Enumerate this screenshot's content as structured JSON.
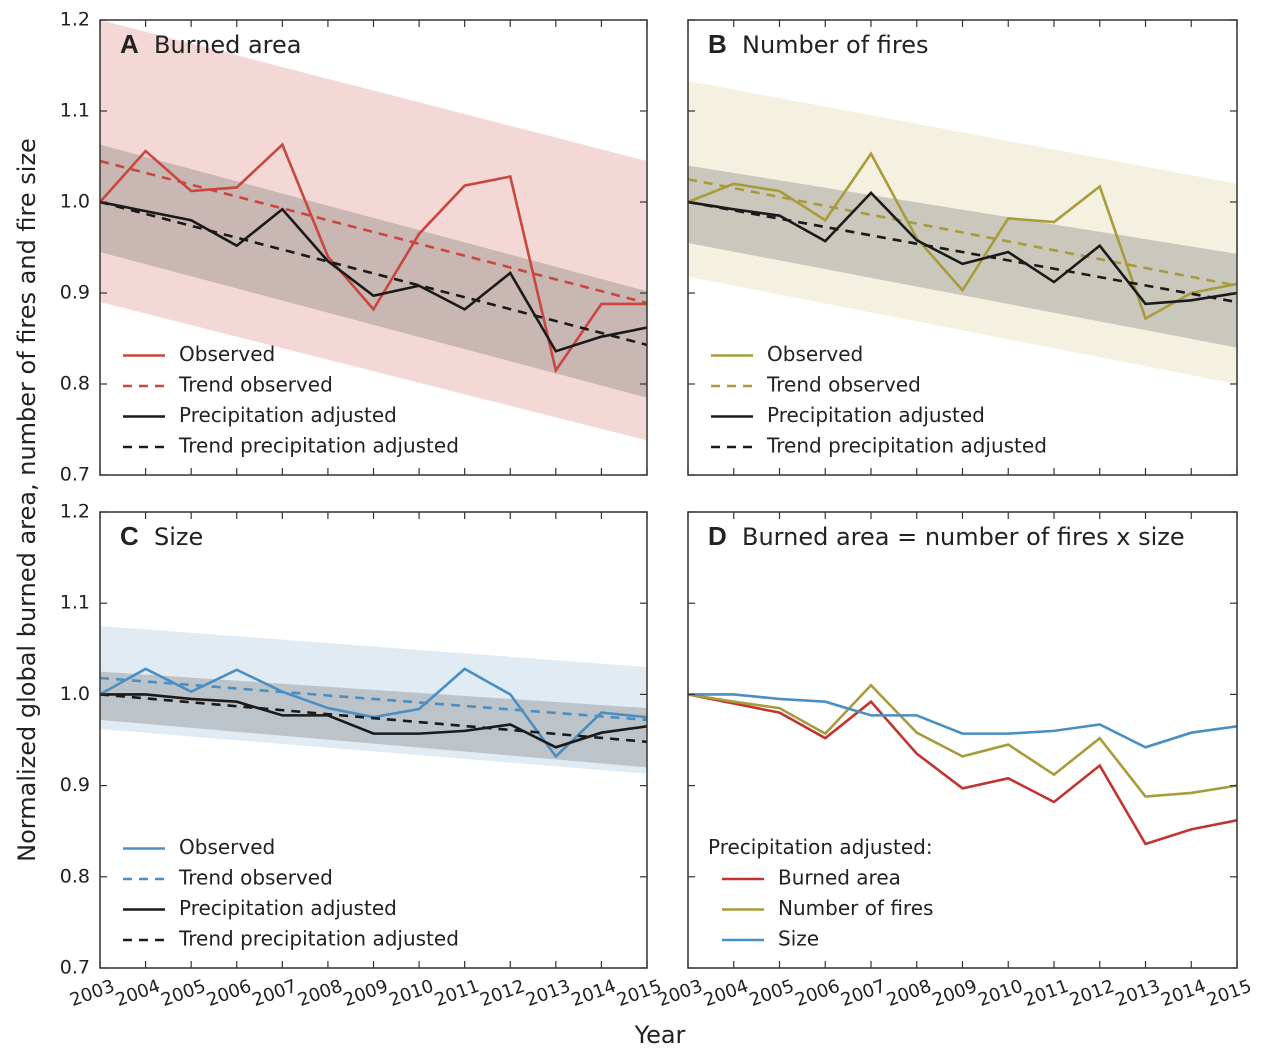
{
  "ylabel": "Normalized global burned area, number of fires and fire size",
  "xlabel": "Year",
  "chart_data": [
    {
      "type": "line",
      "panel": "A",
      "title": "Burned area",
      "x": [
        2003,
        2004,
        2005,
        2006,
        2007,
        2008,
        2009,
        2010,
        2011,
        2012,
        2013,
        2014,
        2015
      ],
      "xlim": [
        2003,
        2015
      ],
      "xticks": [
        2003,
        2004,
        2005,
        2006,
        2007,
        2008,
        2009,
        2010,
        2011,
        2012,
        2013,
        2014,
        2015
      ],
      "xtick_labels": false,
      "ylim": [
        0.7,
        1.2
      ],
      "yticks": [
        0.7,
        0.8,
        0.9,
        {
          "value": 1,
          "label": "1.0"
        },
        1.1,
        1.2
      ],
      "ytick_labels": true,
      "legend": "lower left",
      "bands": [
        {
          "color": "#e9b8b3",
          "x": [
            2003,
            2015
          ],
          "upper": [
            1.2,
            1.045
          ],
          "lower": [
            0.89,
            0.738
          ]
        },
        {
          "color": "#6b6b6b",
          "x": [
            2003,
            2015
          ],
          "upper": [
            1.063,
            0.902
          ],
          "lower": [
            0.945,
            0.785
          ]
        }
      ],
      "series": [
        {
          "name": "Observed",
          "color": "#c9473f",
          "dashed": false,
          "values": [
            1.0,
            1.056,
            1.012,
            1.016,
            1.063,
            0.94,
            0.882,
            0.965,
            1.018,
            1.028,
            0.815,
            0.888,
            0.888
          ]
        },
        {
          "name": "Trend observed",
          "color": "#c9473f",
          "dashed": true,
          "x": [
            2003,
            2015
          ],
          "values": [
            1.045,
            0.889
          ]
        },
        {
          "name": "Precipitation adjusted",
          "color": "#1a1a1a",
          "dashed": false,
          "values": [
            1.0,
            0.99,
            0.98,
            0.952,
            0.992,
            0.935,
            0.897,
            0.908,
            0.882,
            0.922,
            0.836,
            0.852,
            0.862
          ]
        },
        {
          "name": "Trend precipitation adjusted",
          "color": "#1a1a1a",
          "dashed": true,
          "x": [
            2003,
            2015
          ],
          "values": [
            1.0,
            0.843
          ]
        }
      ]
    },
    {
      "type": "line",
      "panel": "B",
      "title": "Number of fires",
      "x": [
        2003,
        2004,
        2005,
        2006,
        2007,
        2008,
        2009,
        2010,
        2011,
        2012,
        2013,
        2014,
        2015
      ],
      "xlim": [
        2003,
        2015
      ],
      "xticks": [
        2003,
        2004,
        2005,
        2006,
        2007,
        2008,
        2009,
        2010,
        2011,
        2012,
        2013,
        2014,
        2015
      ],
      "xtick_labels": false,
      "ylim": [
        0.7,
        1.2
      ],
      "yticks": [
        0.7,
        0.8,
        0.9,
        {
          "value": 1,
          "label": "1.0"
        },
        1.1,
        1.2
      ],
      "ytick_labels": false,
      "legend": "lower left",
      "bands": [
        {
          "color": "#ebe6c6",
          "x": [
            2003,
            2015
          ],
          "upper": [
            1.133,
            1.02
          ],
          "lower": [
            0.918,
            0.8
          ]
        },
        {
          "color": "#6b6b6b",
          "x": [
            2003,
            2015
          ],
          "upper": [
            1.04,
            0.943
          ],
          "lower": [
            0.955,
            0.84
          ]
        }
      ],
      "series": [
        {
          "name": "Observed",
          "color": "#a99b3c",
          "dashed": false,
          "values": [
            1.0,
            1.02,
            1.012,
            0.98,
            1.053,
            0.96,
            0.903,
            0.982,
            0.978,
            1.017,
            0.872,
            0.9,
            0.91
          ]
        },
        {
          "name": "Trend observed",
          "color": "#a99b3c",
          "dashed": true,
          "x": [
            2003,
            2015
          ],
          "values": [
            1.025,
            0.908
          ]
        },
        {
          "name": "Precipitation adjusted",
          "color": "#1a1a1a",
          "dashed": false,
          "values": [
            1.0,
            0.992,
            0.985,
            0.957,
            1.01,
            0.958,
            0.932,
            0.945,
            0.912,
            0.952,
            0.888,
            0.892,
            0.9
          ]
        },
        {
          "name": "Trend precipitation adjusted",
          "color": "#1a1a1a",
          "dashed": true,
          "x": [
            2003,
            2015
          ],
          "values": [
            1.0,
            0.89
          ]
        }
      ]
    },
    {
      "type": "line",
      "panel": "C",
      "title": "Size",
      "x": [
        2003,
        2004,
        2005,
        2006,
        2007,
        2008,
        2009,
        2010,
        2011,
        2012,
        2013,
        2014,
        2015
      ],
      "xlim": [
        2003,
        2015
      ],
      "xticks": [
        2003,
        2004,
        2005,
        2006,
        2007,
        2008,
        2009,
        2010,
        2011,
        2012,
        2013,
        2014,
        2015
      ],
      "xtick_labels": true,
      "ylim": [
        0.7,
        1.2
      ],
      "yticks": [
        0.7,
        0.8,
        0.9,
        {
          "value": 1,
          "label": "1.0"
        },
        1.1,
        1.2
      ],
      "ytick_labels": true,
      "legend": "lower left",
      "bands": [
        {
          "color": "#c8dbea",
          "x": [
            2003,
            2015
          ],
          "upper": [
            1.075,
            1.03
          ],
          "lower": [
            0.962,
            0.913
          ]
        },
        {
          "color": "#6b6b6b",
          "x": [
            2003,
            2015
          ],
          "upper": [
            1.025,
            0.985
          ],
          "lower": [
            0.972,
            0.92
          ]
        }
      ],
      "series": [
        {
          "name": "Observed",
          "color": "#4a8fc4",
          "dashed": false,
          "values": [
            1.0,
            1.028,
            1.003,
            1.027,
            1.003,
            0.985,
            0.975,
            0.984,
            1.028,
            1.0,
            0.932,
            0.98,
            0.975
          ]
        },
        {
          "name": "Trend observed",
          "color": "#4a8fc4",
          "dashed": true,
          "x": [
            2003,
            2015
          ],
          "values": [
            1.018,
            0.972
          ]
        },
        {
          "name": "Precipitation adjusted",
          "color": "#1a1a1a",
          "dashed": false,
          "values": [
            1.0,
            1.0,
            0.995,
            0.992,
            0.977,
            0.977,
            0.957,
            0.957,
            0.96,
            0.967,
            0.942,
            0.958,
            0.965
          ]
        },
        {
          "name": "Trend precipitation adjusted",
          "color": "#1a1a1a",
          "dashed": true,
          "x": [
            2003,
            2015
          ],
          "values": [
            1.0,
            0.948
          ]
        }
      ]
    },
    {
      "type": "line",
      "panel": "D",
      "title": "Burned area = number of fires x size",
      "x": [
        2003,
        2004,
        2005,
        2006,
        2007,
        2008,
        2009,
        2010,
        2011,
        2012,
        2013,
        2014,
        2015
      ],
      "xlim": [
        2003,
        2015
      ],
      "xticks": [
        2003,
        2004,
        2005,
        2006,
        2007,
        2008,
        2009,
        2010,
        2011,
        2012,
        2013,
        2014,
        2015
      ],
      "xtick_labels": true,
      "ylim": [
        0.7,
        1.2
      ],
      "yticks": [
        0.7,
        0.8,
        0.9,
        {
          "value": 1,
          "label": "1.0"
        },
        1.1,
        1.2
      ],
      "ytick_labels": false,
      "legend": "lower left",
      "legend_title": "Precipitation adjusted:",
      "bands": [],
      "series": [
        {
          "name": "Burned area",
          "color": "#c0352f",
          "dashed": false,
          "values": [
            1.0,
            0.99,
            0.98,
            0.952,
            0.992,
            0.935,
            0.897,
            0.908,
            0.882,
            0.922,
            0.836,
            0.852,
            0.862
          ]
        },
        {
          "name": "Number of fires",
          "color": "#a99b3c",
          "dashed": false,
          "values": [
            1.0,
            0.992,
            0.985,
            0.957,
            1.01,
            0.958,
            0.932,
            0.945,
            0.912,
            0.952,
            0.888,
            0.892,
            0.9
          ]
        },
        {
          "name": "Size",
          "color": "#4a8fc4",
          "dashed": false,
          "values": [
            1.0,
            1.0,
            0.995,
            0.992,
            0.977,
            0.977,
            0.957,
            0.957,
            0.96,
            0.967,
            0.942,
            0.958,
            0.965
          ]
        }
      ]
    }
  ]
}
